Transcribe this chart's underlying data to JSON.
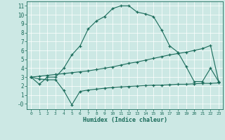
{
  "xlabel": "Humidex (Indice chaleur)",
  "bg_color": "#cce8e4",
  "line_color": "#1a6b5a",
  "x_ticks": [
    0,
    1,
    2,
    3,
    4,
    5,
    6,
    7,
    8,
    9,
    10,
    11,
    12,
    13,
    14,
    15,
    16,
    17,
    18,
    19,
    20,
    21,
    22,
    23
  ],
  "y_ticks": [
    0,
    1,
    2,
    3,
    4,
    5,
    6,
    7,
    8,
    9,
    10,
    11
  ],
  "ylim": [
    -0.6,
    11.5
  ],
  "xlim": [
    -0.5,
    23.5
  ],
  "line1_x": [
    0,
    1,
    2,
    3,
    4,
    5,
    6,
    7,
    8,
    9,
    10,
    11,
    12,
    13,
    14,
    15,
    16,
    17,
    18,
    19,
    20,
    21,
    22,
    23
  ],
  "line1_y": [
    3.0,
    2.2,
    3.0,
    3.0,
    4.0,
    5.5,
    6.5,
    8.4,
    9.3,
    9.8,
    10.7,
    11.0,
    11.0,
    10.3,
    10.1,
    9.8,
    8.3,
    6.5,
    5.8,
    4.2,
    2.5,
    2.5,
    4.0,
    2.5
  ],
  "line2_x": [
    0,
    1,
    2,
    3,
    4,
    5,
    6,
    7,
    8,
    9,
    10,
    11,
    12,
    13,
    14,
    15,
    16,
    17,
    18,
    19,
    20,
    21,
    22,
    23
  ],
  "line2_y": [
    3.0,
    3.1,
    3.2,
    3.3,
    3.4,
    3.5,
    3.6,
    3.7,
    3.85,
    4.0,
    4.15,
    4.35,
    4.55,
    4.7,
    4.9,
    5.1,
    5.3,
    5.5,
    5.65,
    5.8,
    6.0,
    6.2,
    6.55,
    2.5
  ],
  "line3_x": [
    0,
    1,
    2,
    3,
    4,
    5,
    6,
    7,
    8,
    9,
    10,
    11,
    12,
    13,
    14,
    15,
    16,
    17,
    18,
    19,
    20,
    21,
    22,
    23
  ],
  "line3_y": [
    3.0,
    2.8,
    2.7,
    2.7,
    1.5,
    -0.1,
    1.4,
    1.55,
    1.65,
    1.75,
    1.85,
    1.9,
    1.95,
    2.0,
    2.05,
    2.1,
    2.1,
    2.15,
    2.2,
    2.2,
    2.25,
    2.3,
    2.3,
    2.35
  ],
  "grid_color": "#ffffff",
  "spine_color": "#1a6b5a"
}
